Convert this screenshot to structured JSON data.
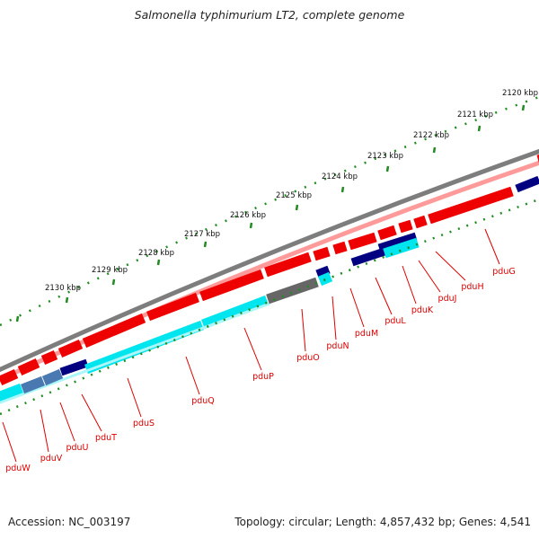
{
  "title": "Salmonella typhimurium LT2, complete genome",
  "footer": {
    "accession": "Accession: NC_003197",
    "summary": "Topology: circular; Length: 4,857,432 bp; Genes: 4,541"
  },
  "ruler": {
    "labels": [
      "2120 kbp",
      "2121 kbp",
      "2122 kbp",
      "2123 kbp",
      "2124 kbp",
      "2125 kbp",
      "2126 kbp",
      "2127 kbp",
      "2128 kbp",
      "2129 kbp",
      "2130 kbp"
    ],
    "tick_color": "#228b22"
  },
  "genes": {
    "labels": [
      "pduG",
      "pduH",
      "pduJ",
      "pduK",
      "pduL",
      "pduM",
      "pduN",
      "pduO",
      "pduP",
      "pduQ",
      "pduS",
      "pduT",
      "pduU",
      "pduV",
      "pduW"
    ],
    "label_color": "#dd0000"
  },
  "colors": {
    "backbone": "#7a7a7a",
    "forward_cds": "#ee0000",
    "forward_cds_shadow": "#ff9a9a",
    "reverse_cds": "#00e5ee",
    "overlap": "#000080",
    "overlap_mixed": "#4a78b0",
    "pseudo_grey": "#666666"
  }
}
